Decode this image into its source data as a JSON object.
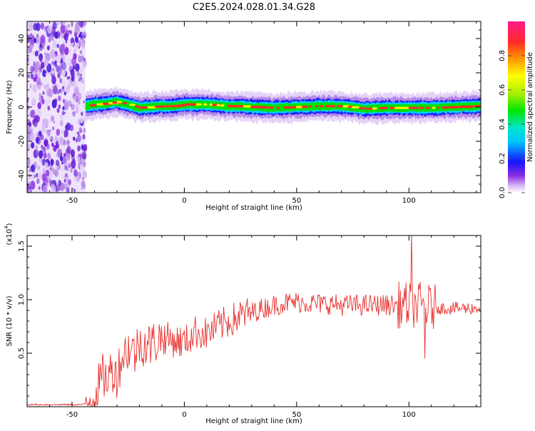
{
  "title": "C2E5.2024.028.01.34.G28",
  "chart_data": [
    {
      "type": "heatmap",
      "xlabel": "Height of straight line (km)",
      "ylabel": "Frequency (Hz)",
      "xlim": [
        -70,
        132
      ],
      "ylim": [
        -50,
        50
      ],
      "xticks": [
        -50,
        0,
        50,
        100
      ],
      "yticks": [
        -40,
        -20,
        0,
        20,
        40
      ],
      "noise_region_x": [
        -70,
        -44
      ],
      "signal_trace": {
        "x": [
          -44,
          -40,
          -35,
          -30,
          -25,
          -20,
          -15,
          -10,
          -5,
          0,
          5,
          10,
          15,
          20,
          25,
          30,
          40,
          50,
          60,
          70,
          80,
          90,
          100,
          110,
          120,
          130
        ],
        "freq": [
          0.5,
          1.5,
          2.0,
          3.0,
          1.5,
          -0.5,
          0.0,
          0.5,
          0.5,
          1.5,
          1.5,
          1.5,
          1.0,
          0.5,
          0.5,
          0.0,
          -0.5,
          0.0,
          0.5,
          0.5,
          -1.0,
          -0.5,
          -0.5,
          -0.5,
          0.0,
          0.5
        ]
      },
      "colorbar": {
        "label": "Normalized spectral amplitude",
        "range": [
          0,
          1
        ],
        "ticks": [
          "0.0",
          "0.2",
          "0.4",
          "0.6",
          "0.8"
        ],
        "tick_values": [
          0.0,
          0.2,
          0.4,
          0.6,
          0.8
        ]
      }
    },
    {
      "type": "line",
      "xlabel": "Height of straight line (km)",
      "ylabel": "SNR (10 * v/v)",
      "scale_label": "(x10",
      "scale_exp": "4",
      "scale_close": ")",
      "xlim": [
        -70,
        132
      ],
      "ylim": [
        0,
        1.6
      ],
      "xticks": [
        -50,
        0,
        50,
        100
      ],
      "yticks": [
        "0.5",
        "1.0",
        "1.5"
      ],
      "ytick_values": [
        0.5,
        1.0,
        1.5
      ],
      "series": [
        {
          "color": "#e8322f",
          "x": [
            -70,
            -45,
            -42,
            -40,
            -38,
            -36,
            -35,
            -32,
            -30,
            -28,
            -25,
            -22,
            -20,
            -15,
            -10,
            -5,
            0,
            5,
            10,
            15,
            20,
            25,
            30,
            35,
            40,
            45,
            50,
            55,
            60,
            65,
            70,
            75,
            80,
            85,
            90,
            95,
            98,
            100,
            101,
            103,
            105,
            108,
            110,
            115,
            120,
            125,
            132
          ],
          "y": [
            0.02,
            0.02,
            0.05,
            0.12,
            0.2,
            0.3,
            0.25,
            0.35,
            0.3,
            0.45,
            0.55,
            0.5,
            0.6,
            0.58,
            0.65,
            0.62,
            0.6,
            0.7,
            0.68,
            0.75,
            0.8,
            0.85,
            0.88,
            0.92,
            0.95,
            0.97,
            0.98,
            0.97,
            0.96,
            0.96,
            0.95,
            0.95,
            0.95,
            0.95,
            0.95,
            0.95,
            0.95,
            0.95,
            0.95,
            0.95,
            0.95,
            0.93,
            0.93,
            0.92,
            0.92,
            0.92,
            0.92
          ]
        }
      ]
    }
  ]
}
